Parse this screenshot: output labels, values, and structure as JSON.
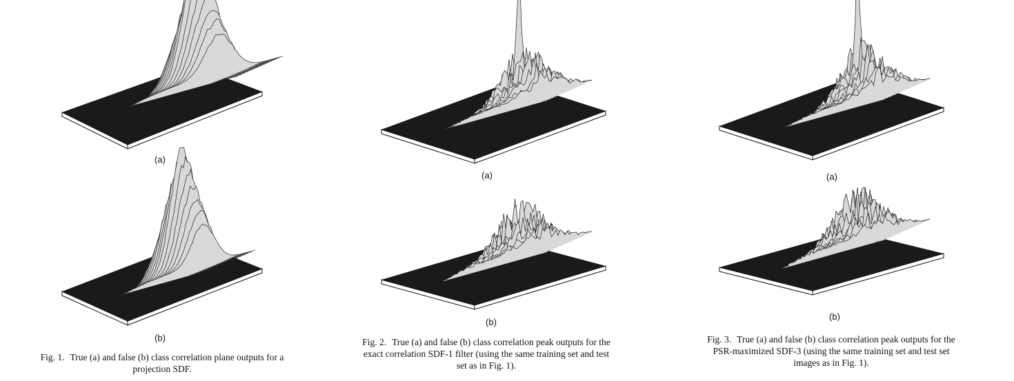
{
  "figures": [
    {
      "id": "fig1",
      "label": "Fig. 1.",
      "caption_line1": "True (a) and false (b) class correlation plane outputs for a",
      "caption_line2": "projection SDF.",
      "panels": [
        {
          "label": "(a)",
          "peak_shape": "broad"
        },
        {
          "label": "(b)",
          "peak_shape": "broad"
        }
      ]
    },
    {
      "id": "fig2",
      "label": "Fig. 2.",
      "caption_line1": "True (a) and false (b) class correlation peak outputs for the",
      "caption_line2": "exact correlation SDF-1 filter (using the same training set and test",
      "caption_line3": "set as in Fig. 1).",
      "panels": [
        {
          "label": "(a)",
          "peak_shape": "sharp"
        },
        {
          "label": "(b)",
          "peak_shape": "multi"
        }
      ]
    },
    {
      "id": "fig3",
      "label": "Fig. 3.",
      "caption_line1": "True (a) and false (b) class correlation peak outputs for the",
      "caption_line2": "PSR-maximized SDF-3 (using the same training set and test set",
      "caption_line3": "images as in Fig. 1).",
      "panels": [
        {
          "label": "(a)",
          "peak_shape": "sharp"
        },
        {
          "label": "(b)",
          "peak_shape": "multi"
        }
      ]
    }
  ]
}
